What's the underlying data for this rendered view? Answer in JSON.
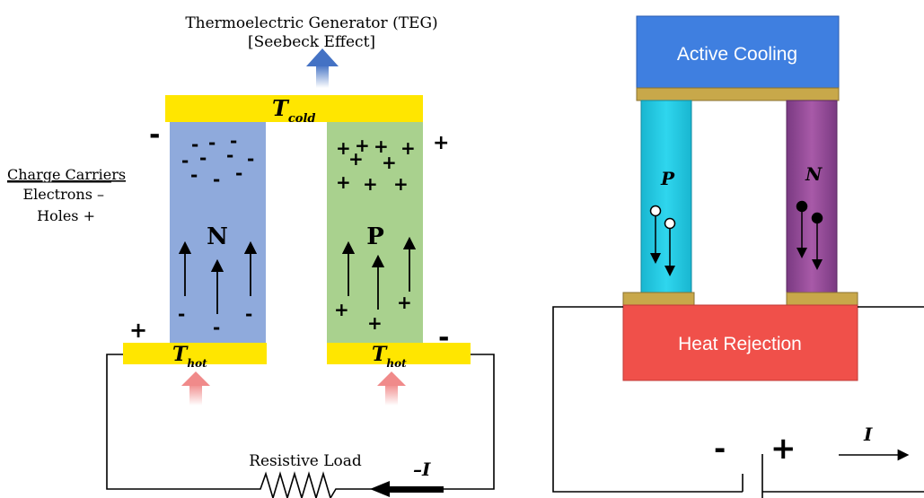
{
  "left_diagram": {
    "title_line1": "Thermoelectric Generator (TEG)",
    "title_line2": "[Seebeck Effect]",
    "t_cold": "T",
    "t_cold_sub": "cold",
    "t_hot": "T",
    "t_hot_sub": "hot",
    "n_label": "N",
    "p_label": "P",
    "legend_heading": "Charge Carriers",
    "legend_electrons": "Electrons –",
    "legend_holes": "Holes +",
    "plus": "+",
    "minus": "–",
    "load_label": "Resistive Load",
    "current_label": "–I"
  },
  "right_diagram": {
    "active_cooling": "Active Cooling",
    "heat_rejection": "Heat Rejection",
    "p_label": "P",
    "n_label": "N",
    "current_label": "I",
    "battery_minus": "-",
    "battery_plus": "+"
  },
  "colors": {
    "yellow_plate": "#ffe600",
    "n_leg": "#8faadc",
    "p_leg": "#a9d18e",
    "cold_arrow": "#4472c4",
    "hot_arrow": "#f4a6a6",
    "active_cooling": "#3f7fe0",
    "heat_rejection": "#f0504a",
    "gold_plate": "#c8a84a",
    "p_leg_right": "#1ec8e0",
    "n_leg_right": "#9a4a9a"
  }
}
